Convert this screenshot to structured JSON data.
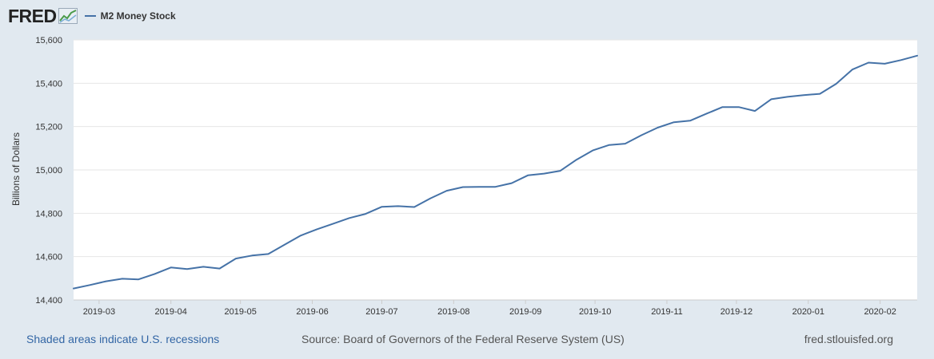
{
  "header": {
    "logo_text": "FRED",
    "legend_label": "M2 Money Stock",
    "series_color": "#4572a7"
  },
  "footer": {
    "recession_note": "Shaded areas indicate U.S. recessions",
    "source": "Source: Board of Governors of the Federal Reserve System (US)",
    "site": "fred.stlouisfed.org"
  },
  "chart_data": {
    "type": "line",
    "title": "",
    "xlabel": "",
    "ylabel": "Billions of Dollars",
    "ylim": [
      14400,
      15600
    ],
    "xlim": [
      "2019-02-18",
      "2020-02-17"
    ],
    "yticks": [
      "14,400",
      "14,600",
      "14,800",
      "15,000",
      "15,200",
      "15,400",
      "15,600"
    ],
    "xticks": [
      {
        "date": "2019-03-01",
        "label": "2019-03"
      },
      {
        "date": "2019-04-01",
        "label": "2019-04"
      },
      {
        "date": "2019-05-01",
        "label": "2019-05"
      },
      {
        "date": "2019-06-01",
        "label": "2019-06"
      },
      {
        "date": "2019-07-01",
        "label": "2019-07"
      },
      {
        "date": "2019-08-01",
        "label": "2019-08"
      },
      {
        "date": "2019-09-01",
        "label": "2019-09"
      },
      {
        "date": "2019-10-01",
        "label": "2019-10"
      },
      {
        "date": "2019-11-01",
        "label": "2019-11"
      },
      {
        "date": "2019-12-01",
        "label": "2019-12"
      },
      {
        "date": "2020-01-01",
        "label": "2020-01"
      },
      {
        "date": "2020-02-01",
        "label": "2020-02"
      }
    ],
    "grid": true,
    "legend": "top-left",
    "series": [
      {
        "name": "M2 Money Stock",
        "color": "#4572a7",
        "points": [
          [
            "2019-02-18",
            14453
          ],
          [
            "2019-02-25",
            14469
          ],
          [
            "2019-03-04",
            14486
          ],
          [
            "2019-03-11",
            14498
          ],
          [
            "2019-03-18",
            14495
          ],
          [
            "2019-03-25",
            14520
          ],
          [
            "2019-04-01",
            14550
          ],
          [
            "2019-04-08",
            14543
          ],
          [
            "2019-04-15",
            14553
          ],
          [
            "2019-04-22",
            14545
          ],
          [
            "2019-04-29",
            14591
          ],
          [
            "2019-05-06",
            14605
          ],
          [
            "2019-05-13",
            14612
          ],
          [
            "2019-05-20",
            14655
          ],
          [
            "2019-05-27",
            14697
          ],
          [
            "2019-06-03",
            14726
          ],
          [
            "2019-06-10",
            14752
          ],
          [
            "2019-06-17",
            14778
          ],
          [
            "2019-06-24",
            14797
          ],
          [
            "2019-07-01",
            14830
          ],
          [
            "2019-07-08",
            14833
          ],
          [
            "2019-07-15",
            14829
          ],
          [
            "2019-07-22",
            14869
          ],
          [
            "2019-07-29",
            14904
          ],
          [
            "2019-08-05",
            14921
          ],
          [
            "2019-08-12",
            14922
          ],
          [
            "2019-08-19",
            14922
          ],
          [
            "2019-08-26",
            14939
          ],
          [
            "2019-09-02",
            14975
          ],
          [
            "2019-09-09",
            14983
          ],
          [
            "2019-09-16",
            14996
          ],
          [
            "2019-09-23",
            15047
          ],
          [
            "2019-09-30",
            15090
          ],
          [
            "2019-10-07",
            15115
          ],
          [
            "2019-10-14",
            15121
          ],
          [
            "2019-10-21",
            15160
          ],
          [
            "2019-10-28",
            15195
          ],
          [
            "2019-11-04",
            15220
          ],
          [
            "2019-11-11",
            15227
          ],
          [
            "2019-11-18",
            15259
          ],
          [
            "2019-11-25",
            15290
          ],
          [
            "2019-12-02",
            15290
          ],
          [
            "2019-12-09",
            15272
          ],
          [
            "2019-12-16",
            15326
          ],
          [
            "2019-12-23",
            15337
          ],
          [
            "2019-12-30",
            15345
          ],
          [
            "2020-01-06",
            15351
          ],
          [
            "2020-01-13",
            15397
          ],
          [
            "2020-01-20",
            15463
          ],
          [
            "2020-01-27",
            15495
          ],
          [
            "2020-02-03",
            15490
          ],
          [
            "2020-02-10",
            15507
          ],
          [
            "2020-02-17",
            15527
          ]
        ]
      }
    ]
  }
}
